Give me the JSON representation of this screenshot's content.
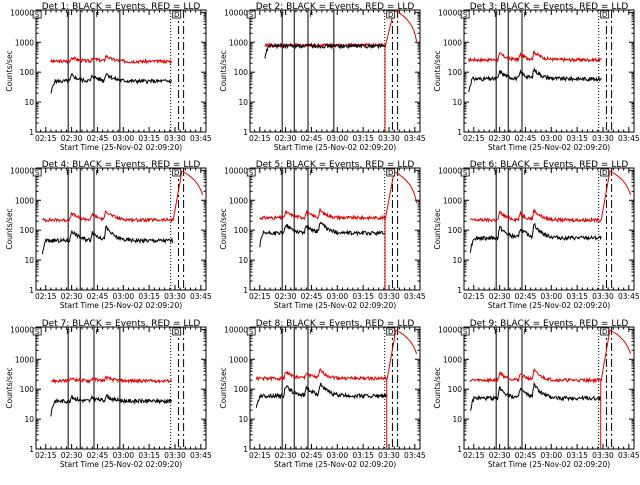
{
  "colors": {
    "events": "#000000",
    "lld": "#e00000"
  },
  "common": {
    "title_suffix": " BLACK = Events, RED = LLD",
    "xlabel": "Start Time (25-Nov-02 02:09:20)",
    "ylabel": "Counts/sec",
    "xticks": [
      "02:15",
      "02:30",
      "02:45",
      "03:00",
      "03:15",
      "03:30",
      "03:45"
    ],
    "xtick_minutes": [
      15,
      30,
      45,
      60,
      75,
      90,
      105
    ],
    "xlim_minutes": [
      9.33,
      108
    ],
    "yticks": [
      "1",
      "10",
      "100",
      "1000",
      "10000"
    ],
    "yscale": "log",
    "ylim": [
      1,
      12000
    ],
    "box_labels": [
      "S",
      "F",
      "F",
      "D"
    ],
    "box_label_minutes": [
      10,
      28,
      45,
      91
    ]
  },
  "chart_data": [
    {
      "type": "line",
      "title": "Det 1:",
      "ev_base": 50,
      "lld_base": 230,
      "lld_end": 260,
      "rise": false,
      "gap": false,
      "active": [
        [
          18,
          88
        ]
      ],
      "solid_lines": [
        28,
        35,
        43,
        58
      ],
      "dotted_lines": [
        87.5
      ],
      "dash_lines": [
        92,
        95
      ],
      "ev_peaks": [
        [
          30,
          1.6
        ],
        [
          42,
          1.5
        ],
        [
          50,
          1.8
        ]
      ],
      "lld_peaks": [
        [
          30,
          1.4
        ],
        [
          42,
          1.3
        ],
        [
          50,
          1.5
        ]
      ]
    },
    {
      "type": "line",
      "title": "Det 2:",
      "ev_base": 760,
      "lld_base": 800,
      "lld_end": 12000,
      "rise": true,
      "gap": true,
      "active": [
        [
          18,
          88
        ]
      ],
      "solid_lines": [
        28,
        35,
        43,
        58
      ],
      "dotted_lines": [
        87.5
      ],
      "dash_lines": [
        92,
        95
      ],
      "ev_peaks": [],
      "lld_peaks": []
    },
    {
      "type": "line",
      "title": "Det 3:",
      "ev_base": 60,
      "lld_base": 260,
      "lld_end": 420,
      "rise": false,
      "gap": false,
      "active": [
        [
          12,
          89
        ]
      ],
      "solid_lines": [
        28,
        35,
        43
      ],
      "dotted_lines": [
        87.5
      ],
      "dash_lines": [
        92,
        95
      ],
      "ev_peaks": [
        [
          30,
          1.8
        ],
        [
          42,
          1.6
        ],
        [
          50,
          2.0
        ]
      ],
      "lld_peaks": [
        [
          30,
          1.6
        ],
        [
          42,
          1.5
        ],
        [
          50,
          1.8
        ]
      ]
    },
    {
      "type": "line",
      "title": "Det 4:",
      "ev_base": 45,
      "lld_base": 220,
      "lld_end": 9500,
      "rise": true,
      "gap": false,
      "active": [
        [
          13,
          89
        ]
      ],
      "solid_lines": [
        28,
        35,
        43
      ],
      "dotted_lines": [
        87.5
      ],
      "dash_lines": [
        92,
        95
      ],
      "ev_peaks": [
        [
          30,
          2.2
        ],
        [
          42,
          1.9
        ],
        [
          50,
          2.6
        ]
      ],
      "lld_peaks": [
        [
          30,
          1.7
        ],
        [
          42,
          1.5
        ],
        [
          50,
          2.0
        ]
      ]
    },
    {
      "type": "line",
      "title": "Det 5:",
      "ev_base": 80,
      "lld_base": 260,
      "lld_end": 9000,
      "rise": true,
      "gap": true,
      "active": [
        [
          15,
          88
        ]
      ],
      "solid_lines": [
        28,
        35,
        43
      ],
      "dotted_lines": [
        87.5
      ],
      "dash_lines": [
        92,
        95
      ],
      "ev_peaks": [
        [
          30,
          2.0
        ],
        [
          42,
          1.8
        ],
        [
          50,
          2.2
        ]
      ],
      "lld_peaks": [
        [
          30,
          1.6
        ],
        [
          42,
          1.5
        ],
        [
          50,
          1.7
        ]
      ]
    },
    {
      "type": "line",
      "title": "Det 6:",
      "ev_base": 55,
      "lld_base": 220,
      "lld_end": 9500,
      "rise": true,
      "gap": false,
      "active": [
        [
          13,
          89
        ]
      ],
      "solid_lines": [
        28,
        35,
        43
      ],
      "dotted_lines": [
        87.5
      ],
      "dash_lines": [
        92,
        95
      ],
      "ev_peaks": [
        [
          30,
          2.3
        ],
        [
          42,
          2.0
        ],
        [
          50,
          2.6
        ]
      ],
      "lld_peaks": [
        [
          30,
          1.8
        ],
        [
          42,
          1.6
        ],
        [
          50,
          2.0
        ]
      ]
    },
    {
      "type": "line",
      "title": "Det 7:",
      "ev_base": 40,
      "lld_base": 190,
      "lld_end": 200,
      "rise": false,
      "gap": false,
      "active": [
        [
          18,
          88
        ]
      ],
      "solid_lines": [
        28,
        35,
        43,
        58
      ],
      "dotted_lines": [
        87.5
      ],
      "dash_lines": [
        92,
        95
      ],
      "ev_peaks": [
        [
          30,
          1.4
        ],
        [
          42,
          1.3
        ],
        [
          50,
          1.5
        ]
      ],
      "lld_peaks": [
        [
          30,
          1.2
        ],
        [
          42,
          1.2
        ],
        [
          50,
          1.3
        ]
      ]
    },
    {
      "type": "line",
      "title": "Det 8:",
      "ev_base": 60,
      "lld_base": 230,
      "lld_end": 9500,
      "rise": true,
      "gap": true,
      "active": [
        [
          13,
          89
        ]
      ],
      "solid_lines": [
        28,
        35,
        43
      ],
      "dotted_lines": [
        87.5
      ],
      "dash_lines": [
        92,
        95
      ],
      "ev_peaks": [
        [
          30,
          2.2
        ],
        [
          42,
          1.9
        ],
        [
          50,
          2.4
        ]
      ],
      "lld_peaks": [
        [
          30,
          1.7
        ],
        [
          42,
          1.5
        ],
        [
          50,
          1.8
        ]
      ]
    },
    {
      "type": "line",
      "title": "Det 9:",
      "ev_base": 50,
      "lld_base": 200,
      "lld_end": 9500,
      "rise": true,
      "gap": true,
      "active": [
        [
          13,
          89
        ]
      ],
      "solid_lines": [
        28,
        35,
        43
      ],
      "dotted_lines": [
        87.5
      ],
      "dash_lines": [
        92,
        95
      ],
      "ev_peaks": [
        [
          30,
          2.3
        ],
        [
          42,
          2.0
        ],
        [
          50,
          2.6
        ]
      ],
      "lld_peaks": [
        [
          30,
          1.8
        ],
        [
          42,
          1.6
        ],
        [
          50,
          2.0
        ]
      ]
    }
  ]
}
